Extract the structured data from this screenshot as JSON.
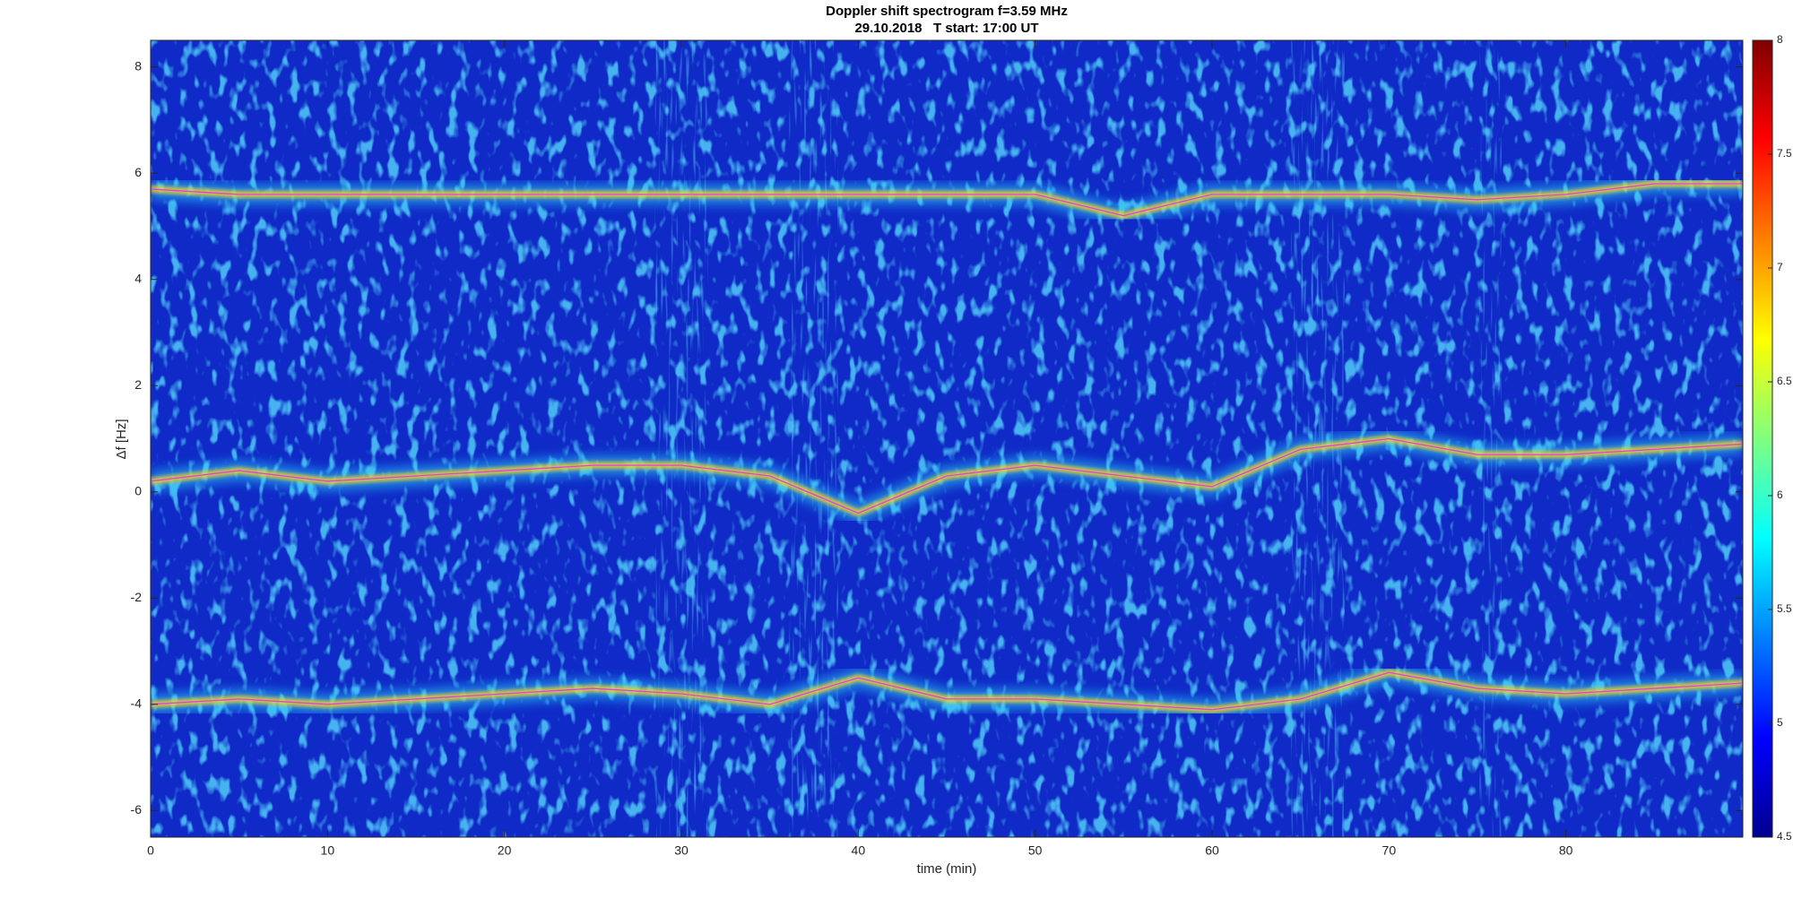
{
  "chart_data": {
    "type": "line",
    "title": "Doppler shift spectrogram f=3.59 MHz",
    "subtitle": "29.10.2018   T start: 17:00 UT",
    "x_label": "time (min)",
    "y_label": "Δf [Hz]",
    "x": [
      0,
      5,
      10,
      15,
      20,
      25,
      30,
      35,
      40,
      45,
      50,
      55,
      60,
      65,
      70,
      75,
      80,
      85,
      90
    ],
    "series": [
      {
        "color": "#e040e0",
        "values": [
          5.7,
          5.6,
          5.6,
          5.6,
          5.6,
          5.6,
          5.6,
          5.6,
          5.6,
          5.6,
          5.6,
          5.2,
          5.6,
          5.6,
          5.6,
          5.5,
          5.6,
          5.8,
          5.8
        ]
      },
      {
        "color": "#e040e0",
        "values": [
          0.2,
          0.4,
          0.2,
          0.3,
          0.4,
          0.5,
          0.5,
          0.3,
          -0.4,
          0.3,
          0.5,
          0.3,
          0.1,
          0.8,
          1.0,
          0.7,
          0.7,
          0.8,
          0.9
        ]
      },
      {
        "color": "#e040e0",
        "values": [
          -4.0,
          -3.9,
          -4.0,
          -3.9,
          -3.8,
          -3.7,
          -3.8,
          -4.0,
          -3.5,
          -3.9,
          -3.9,
          -4.0,
          -4.1,
          -3.9,
          -3.4,
          -3.7,
          -3.8,
          -3.7,
          -3.6
        ]
      }
    ],
    "xlim": [
      0,
      90
    ],
    "ylim": [
      -6.5,
      8.5
    ],
    "xticks": [
      0,
      10,
      20,
      30,
      40,
      50,
      60,
      70,
      80
    ],
    "yticks": [
      -6,
      -4,
      -2,
      0,
      2,
      4,
      6,
      8
    ],
    "colormap": "jet",
    "colorbar": {
      "lim": [
        4.5,
        8
      ],
      "ticks": [
        4.5,
        5,
        5.5,
        6,
        6.5,
        7,
        7.5,
        8
      ]
    }
  }
}
